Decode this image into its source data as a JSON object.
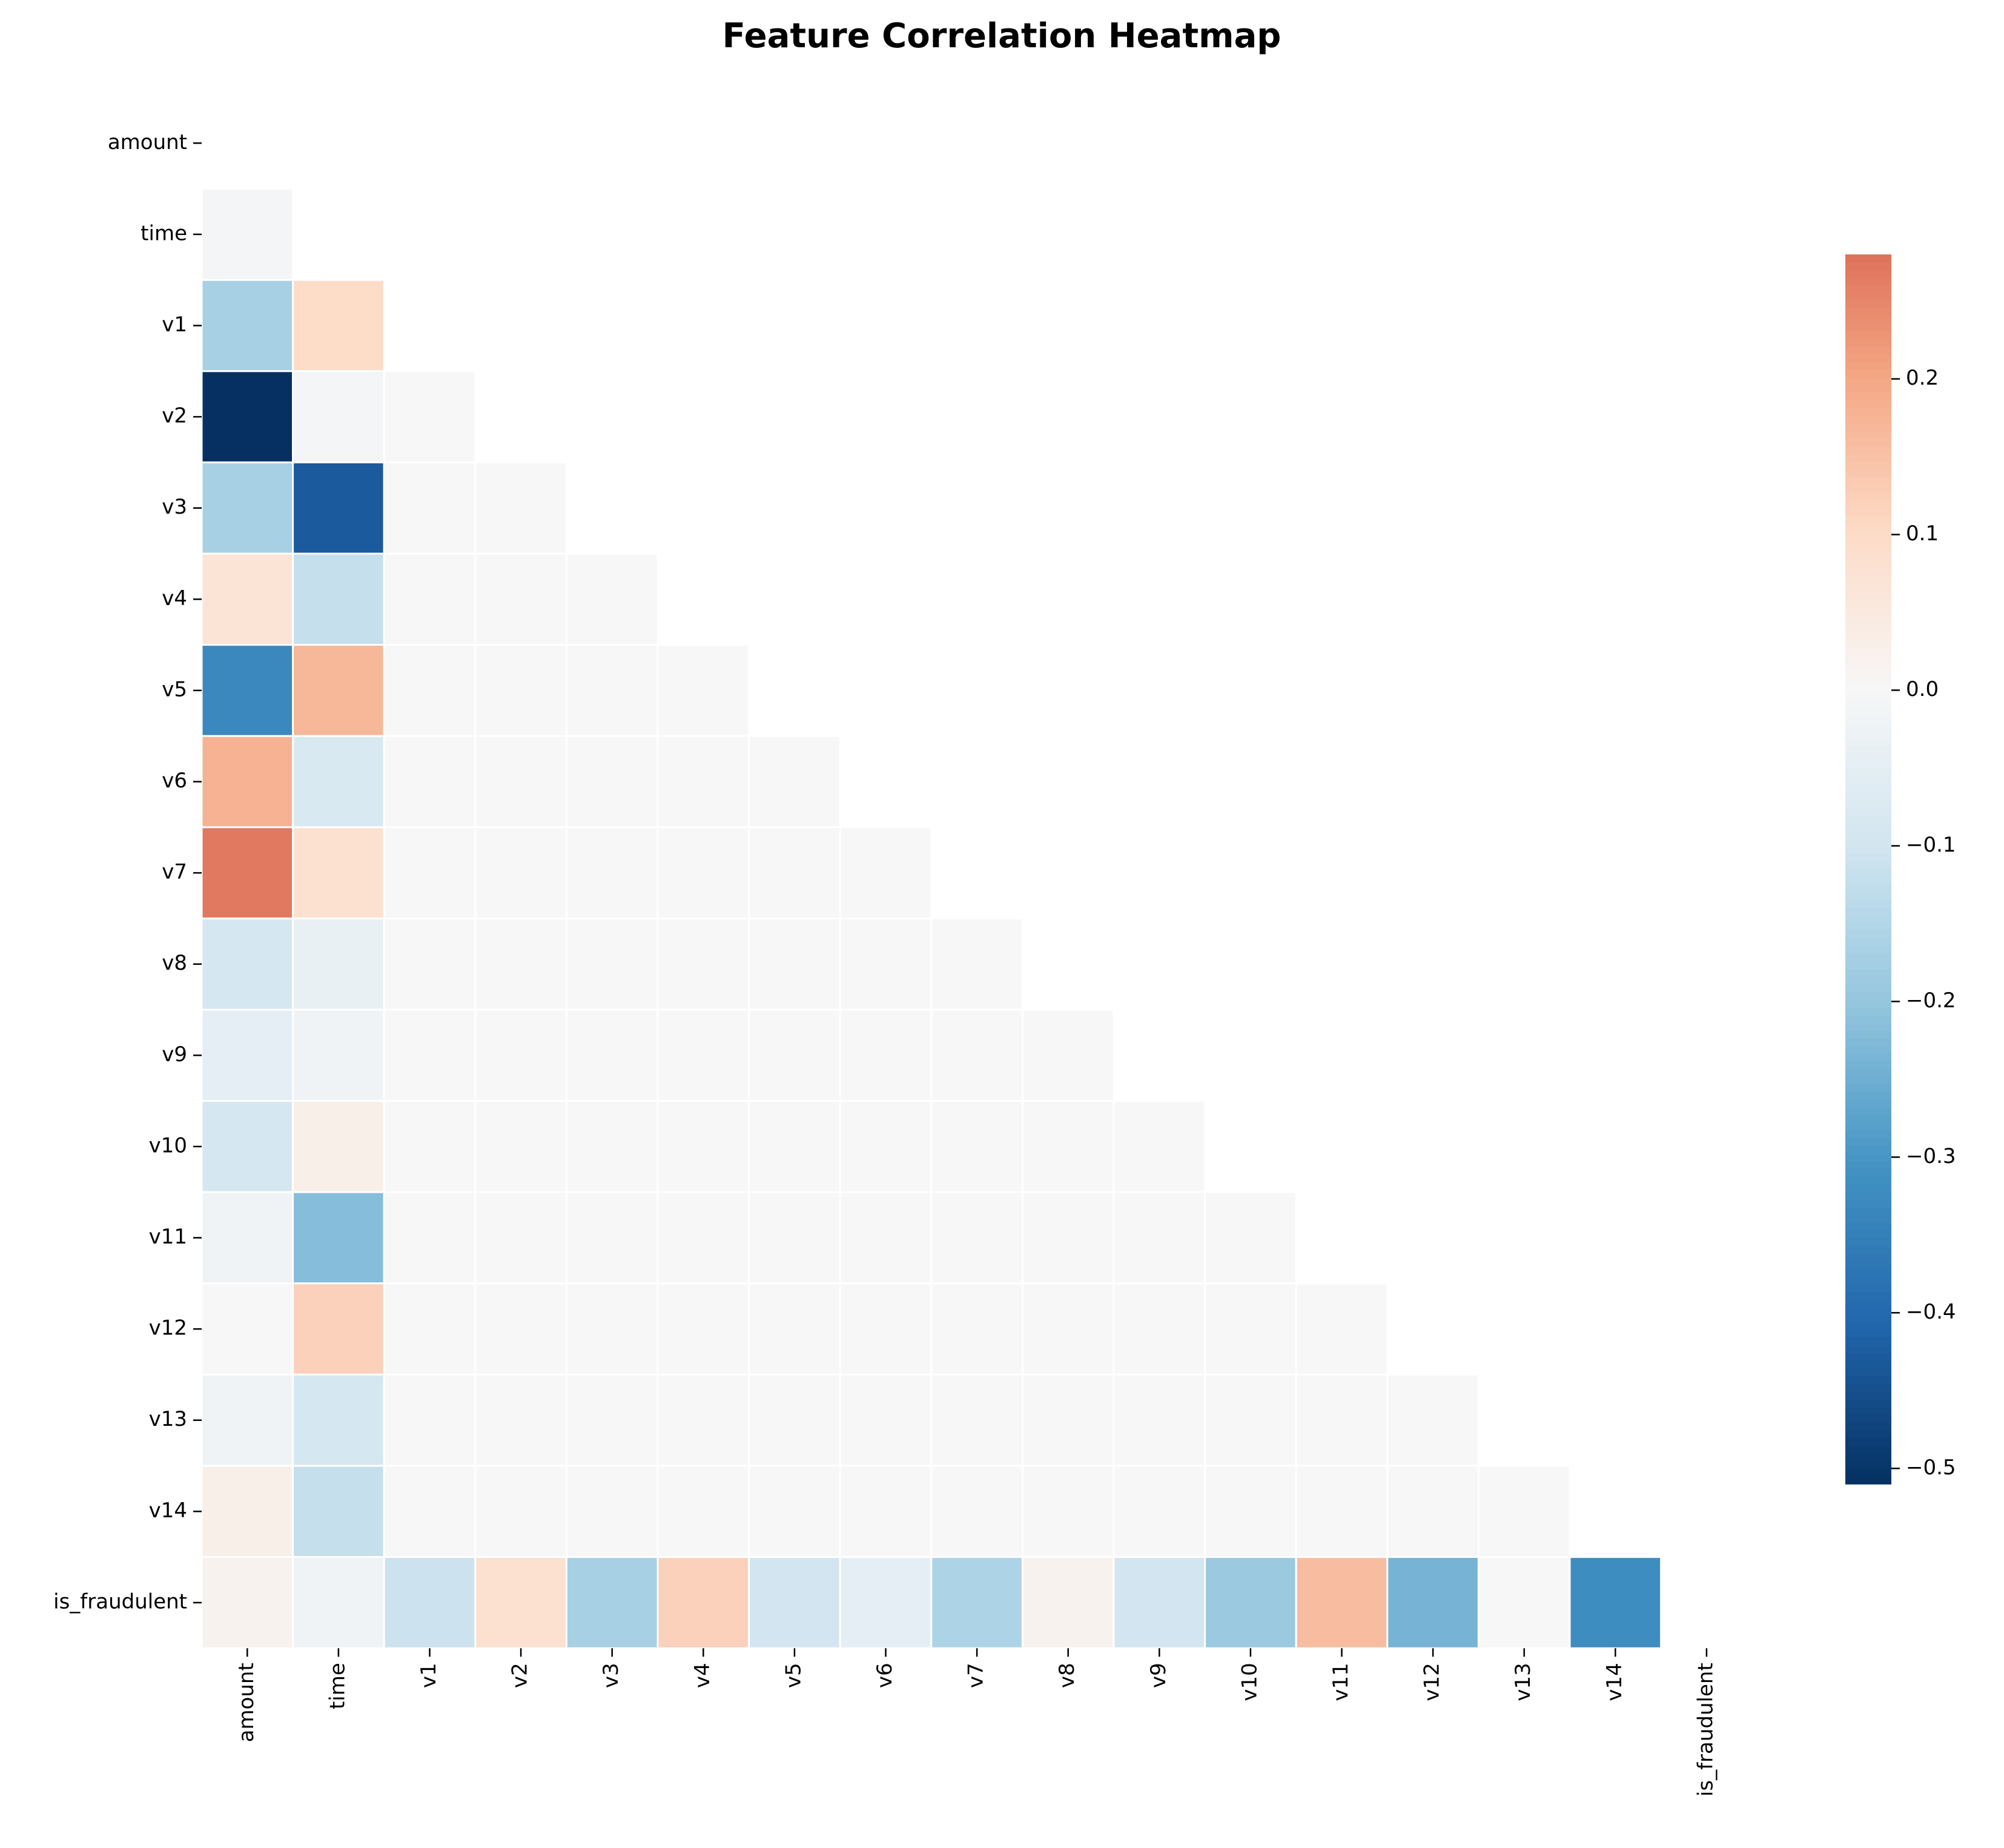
{
  "chart_data": {
    "type": "heatmap",
    "title": "Feature Correlation Heatmap",
    "variables": [
      "amount",
      "time",
      "v1",
      "v2",
      "v3",
      "v4",
      "v5",
      "v6",
      "v7",
      "v8",
      "v9",
      "v10",
      "v11",
      "v12",
      "v13",
      "v14",
      "is_fraudulent"
    ],
    "mask": "upper-triangle-and-diagonal",
    "lower_triangle_rows": [
      [],
      [
        -0.01
      ],
      [
        -0.17,
        0.1
      ],
      [
        -0.51,
        -0.01,
        0.0
      ],
      [
        -0.17,
        -0.43,
        0.0,
        0.0
      ],
      [
        0.07,
        -0.12,
        0.0,
        0.0,
        0.0
      ],
      [
        -0.33,
        0.17,
        0.0,
        0.0,
        0.0,
        0.0
      ],
      [
        0.18,
        -0.08,
        0.0,
        0.0,
        0.0,
        0.0,
        0.0
      ],
      [
        0.27,
        0.08,
        0.0,
        0.0,
        0.0,
        0.0,
        0.0,
        0.0
      ],
      [
        -0.09,
        -0.04,
        0.0,
        0.0,
        0.0,
        0.0,
        0.0,
        0.0,
        0.0
      ],
      [
        -0.05,
        -0.02,
        0.0,
        0.0,
        0.0,
        0.0,
        0.0,
        0.0,
        0.0,
        0.0
      ],
      [
        -0.09,
        0.03,
        0.0,
        0.0,
        0.0,
        0.0,
        0.0,
        0.0,
        0.0,
        0.0,
        0.0
      ],
      [
        -0.02,
        -0.22,
        0.0,
        0.0,
        0.0,
        0.0,
        0.0,
        0.0,
        0.0,
        0.0,
        0.0,
        0.0
      ],
      [
        0.0,
        0.12,
        0.0,
        0.0,
        0.0,
        0.0,
        0.0,
        0.0,
        0.0,
        0.0,
        0.0,
        0.0,
        0.0
      ],
      [
        -0.02,
        -0.09,
        0.0,
        0.0,
        0.0,
        0.0,
        0.0,
        0.0,
        0.0,
        0.0,
        0.0,
        0.0,
        0.0,
        0.0
      ],
      [
        0.03,
        -0.12,
        0.0,
        0.0,
        0.0,
        0.0,
        0.0,
        0.0,
        0.0,
        0.0,
        0.0,
        0.0,
        0.0,
        0.0,
        0.0
      ],
      [
        0.02,
        -0.02,
        -0.11,
        0.08,
        -0.17,
        0.12,
        -0.1,
        -0.05,
        -0.16,
        0.02,
        -0.1,
        -0.19,
        0.16,
        -0.24,
        0.0,
        -0.32
      ]
    ],
    "colorbar": {
      "colormap": "RdBu_r",
      "vmin": -0.51,
      "vmax": 0.28,
      "center": 0.0,
      "ticks": [
        -0.5,
        -0.4,
        -0.3,
        -0.2,
        -0.1,
        0.0,
        0.1,
        0.2
      ],
      "tick_labels": [
        "−0.5",
        "−0.4",
        "−0.3",
        "−0.2",
        "−0.1",
        "0.0",
        "0.1",
        "0.2"
      ]
    }
  }
}
